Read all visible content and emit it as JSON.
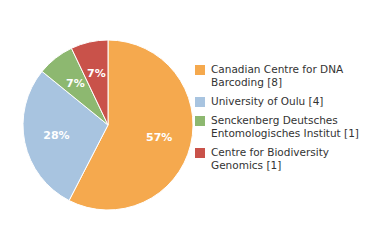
{
  "chart_data": {
    "type": "pie",
    "categories": [
      "Canadian Centre for DNA\nBarcoding [8]",
      "University of Oulu [4]",
      "Senckenberg Deutsches\nEntomologisches Institut [1]",
      "Centre for Biodiversity\nGenomics [1]"
    ],
    "values": [
      57,
      28,
      7,
      7
    ],
    "value_labels": [
      "57%",
      "28%",
      "7%",
      "7%"
    ],
    "colors": [
      "#F5A94E",
      "#A8C4E0",
      "#8DB870",
      "#C9524A"
    ],
    "data_labels": true,
    "legend": "right"
  }
}
